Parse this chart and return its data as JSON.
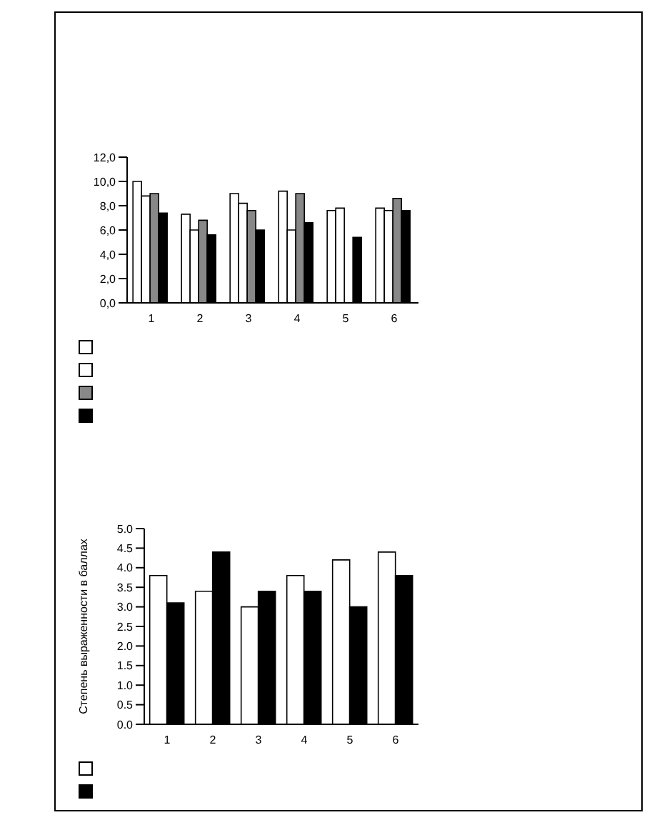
{
  "chart_data": [
    {
      "type": "bar",
      "categories": [
        "1",
        "2",
        "3",
        "4",
        "5",
        "6"
      ],
      "series": [
        {
          "color": "#ffffff",
          "values": [
            10.0,
            7.3,
            9.0,
            9.2,
            7.6,
            7.8
          ]
        },
        {
          "color": "#ffffff",
          "values": [
            8.8,
            6.0,
            8.2,
            6.0,
            7.8,
            7.6
          ]
        },
        {
          "color": "#888888",
          "values": [
            9.0,
            6.8,
            7.6,
            9.0,
            null,
            8.6
          ]
        },
        {
          "color": "#000000",
          "values": [
            7.4,
            5.6,
            6.0,
            6.6,
            5.4,
            7.6
          ]
        }
      ],
      "ylim": [
        0,
        12
      ],
      "yticks": [
        {
          "value": 0,
          "label": "0,0"
        },
        {
          "value": 2,
          "label": "2,0"
        },
        {
          "value": 4,
          "label": "4,0"
        },
        {
          "value": 6,
          "label": "6,0"
        },
        {
          "value": 8,
          "label": "8,0"
        },
        {
          "value": 10,
          "label": "10,0"
        },
        {
          "value": 12,
          "label": "12,0"
        }
      ],
      "grid": false
    },
    {
      "type": "bar",
      "ylabel": "Степень выраженности в баллах",
      "categories": [
        "1",
        "2",
        "3",
        "4",
        "5",
        "6"
      ],
      "series": [
        {
          "color": "#ffffff",
          "values": [
            3.8,
            3.4,
            3.0,
            3.8,
            4.2,
            4.4
          ]
        },
        {
          "color": "#000000",
          "values": [
            3.1,
            4.4,
            3.4,
            3.4,
            3.0,
            3.8
          ]
        }
      ],
      "ylim": [
        0,
        5
      ],
      "yticks": [
        {
          "value": 0,
          "label": "0.0"
        },
        {
          "value": 0.5,
          "label": "0.5"
        },
        {
          "value": 1,
          "label": "1.0"
        },
        {
          "value": 1.5,
          "label": "1.5"
        },
        {
          "value": 2,
          "label": "2.0"
        },
        {
          "value": 2.5,
          "label": "2.5"
        },
        {
          "value": 3,
          "label": "3.0"
        },
        {
          "value": 3.5,
          "label": "3.5"
        },
        {
          "value": 4,
          "label": "4.0"
        },
        {
          "value": 4.5,
          "label": "4.5"
        },
        {
          "value": 5,
          "label": "5.0"
        }
      ],
      "grid": false
    }
  ]
}
